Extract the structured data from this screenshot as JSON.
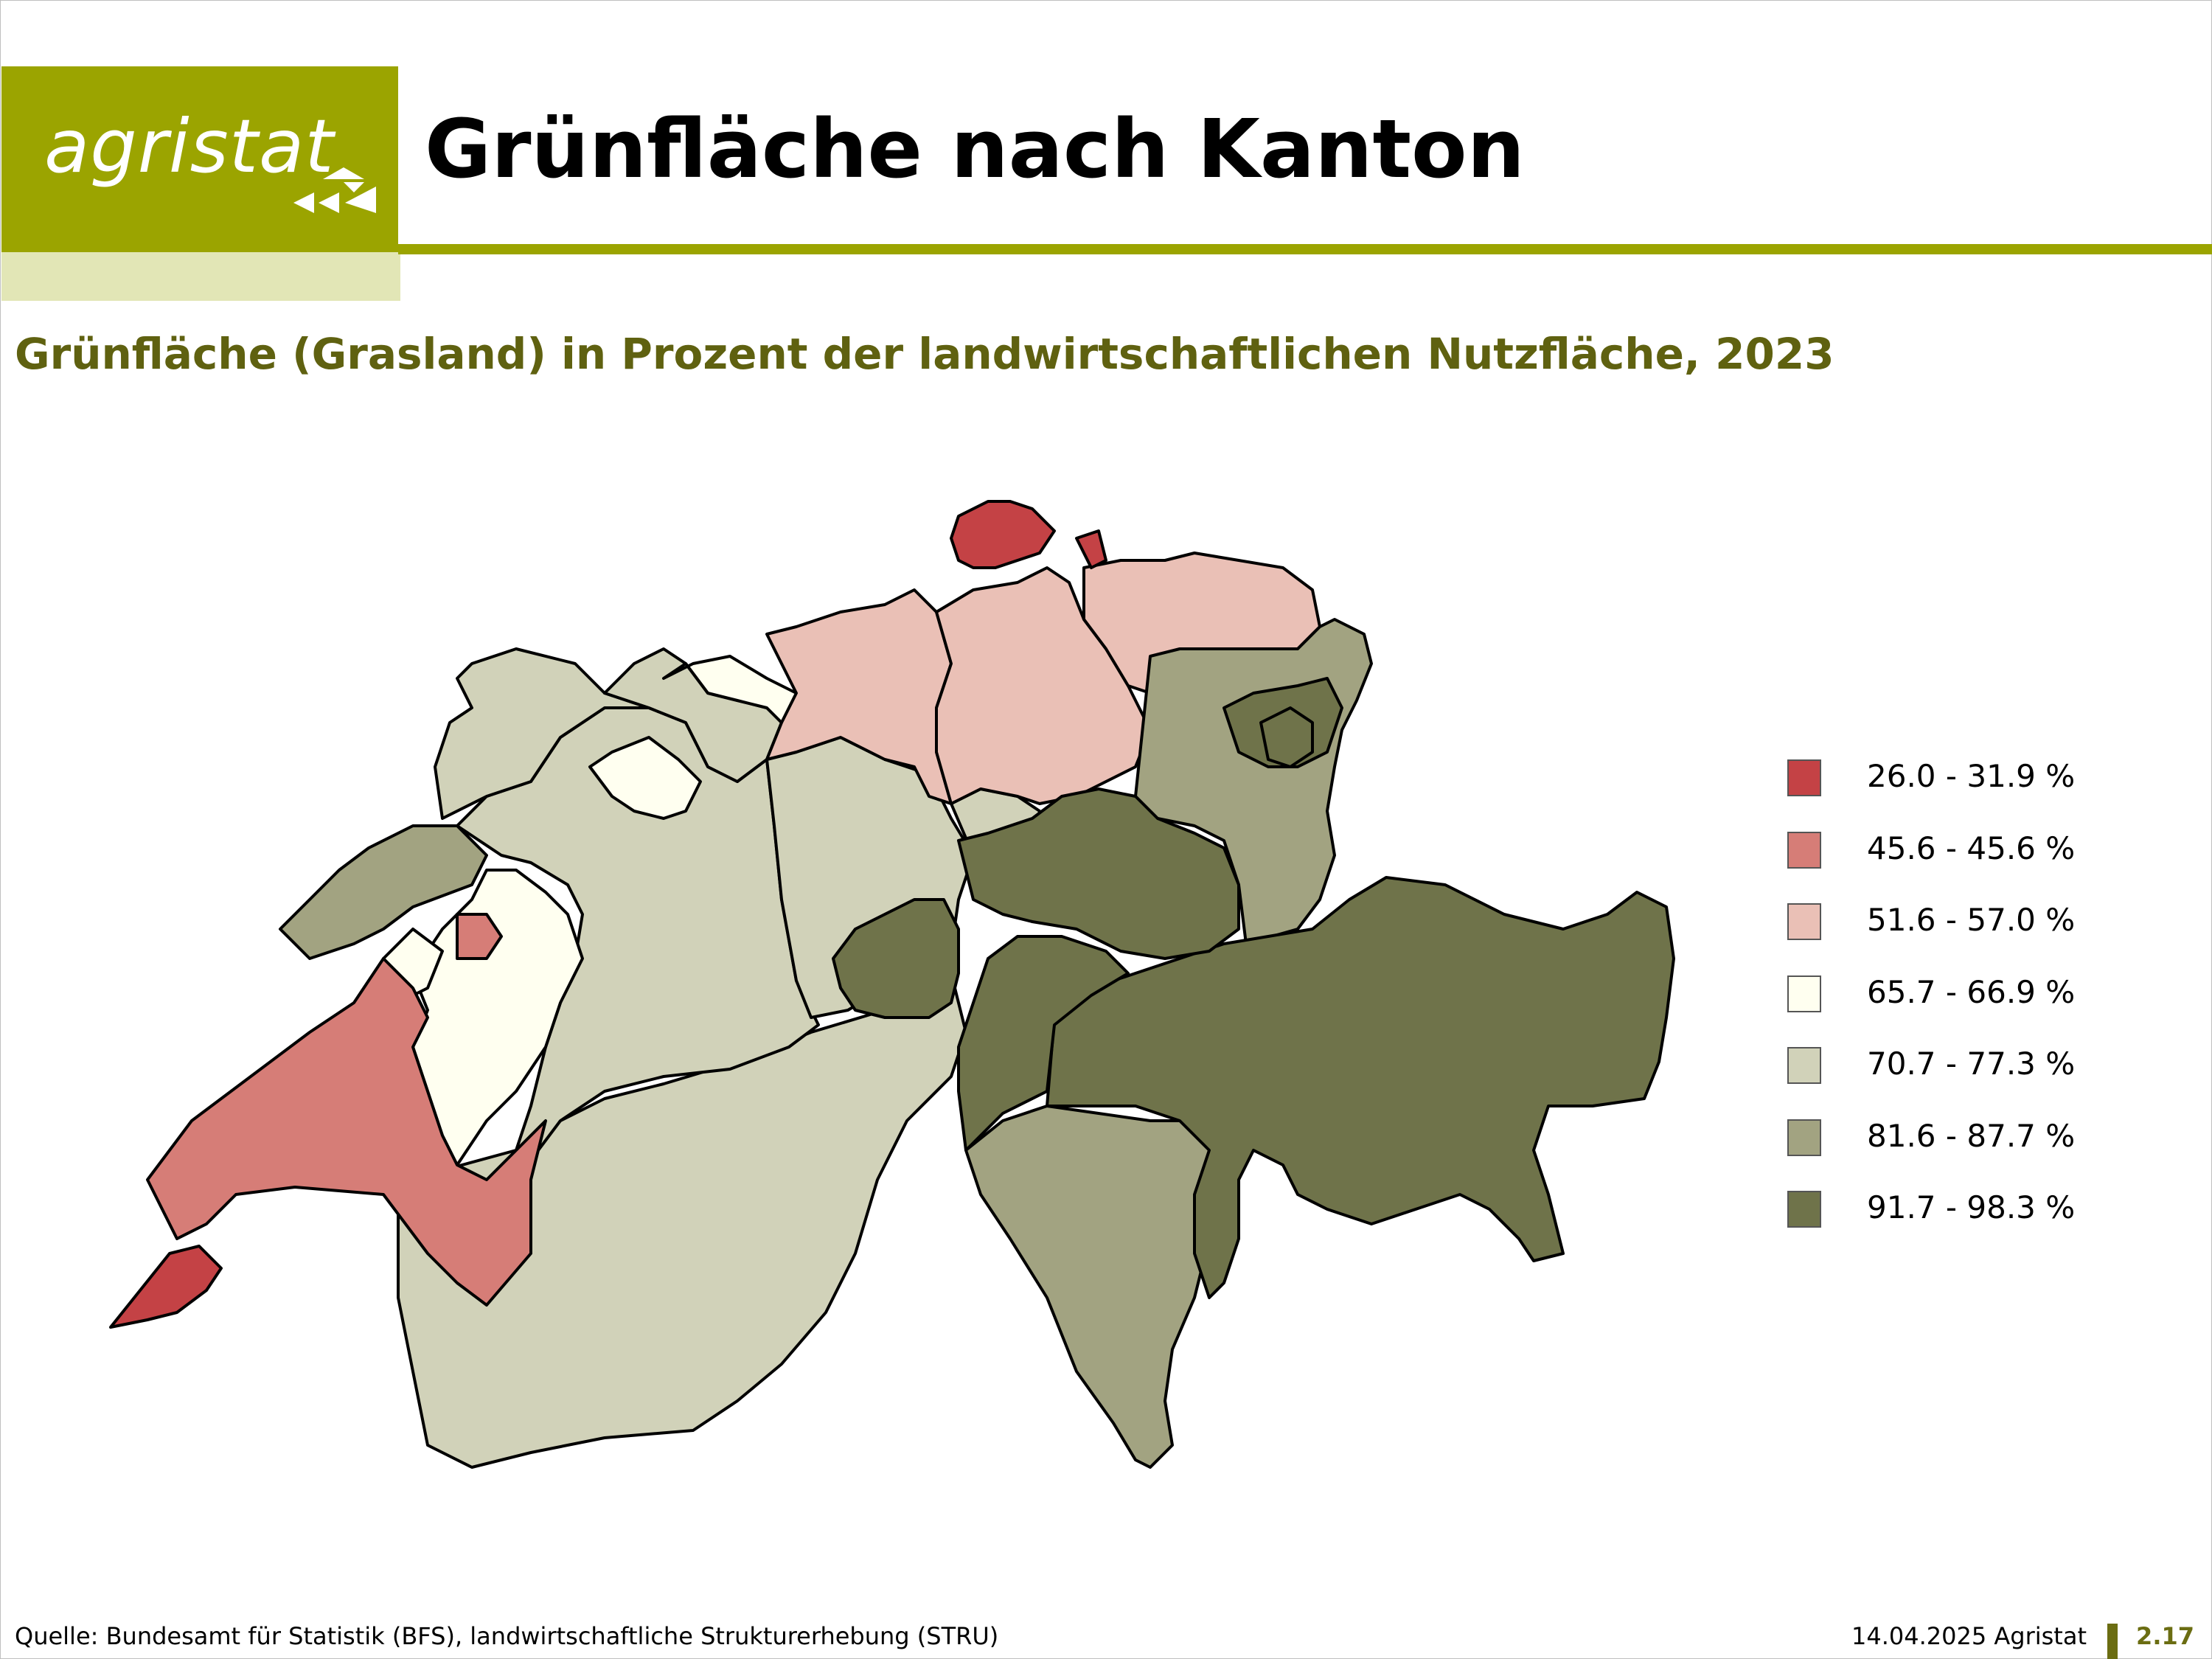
{
  "logo": {
    "text": "agristat"
  },
  "header": {
    "title": "Grünfläche nach Kanton"
  },
  "subtitle": "Grünfläche (Grasland) in Prozent der landwirtschaftlichen Nutzfläche, 2023",
  "legend": [
    {
      "label": "26.0 - 31.9 %",
      "color": "#c44245"
    },
    {
      "label": "45.6 - 45.6 %",
      "color": "#d67d77"
    },
    {
      "label": "51.6 - 57.0 %",
      "color": "#eac0b6"
    },
    {
      "label": "65.7 - 66.9 %",
      "color": "#fffff0"
    },
    {
      "label": "70.7 - 77.3 %",
      "color": "#d1d2b9"
    },
    {
      "label": "81.6 - 87.7 %",
      "color": "#a2a381"
    },
    {
      "label": "91.7 - 98.3 %",
      "color": "#6f734a"
    }
  ],
  "footer": {
    "source": "Quelle: Bundesamt für Statistik (BFS), landwirtschaftliche Strukturerhebung (STRU)",
    "date": "14.04.2025 Agristat",
    "page": "2.17"
  }
}
